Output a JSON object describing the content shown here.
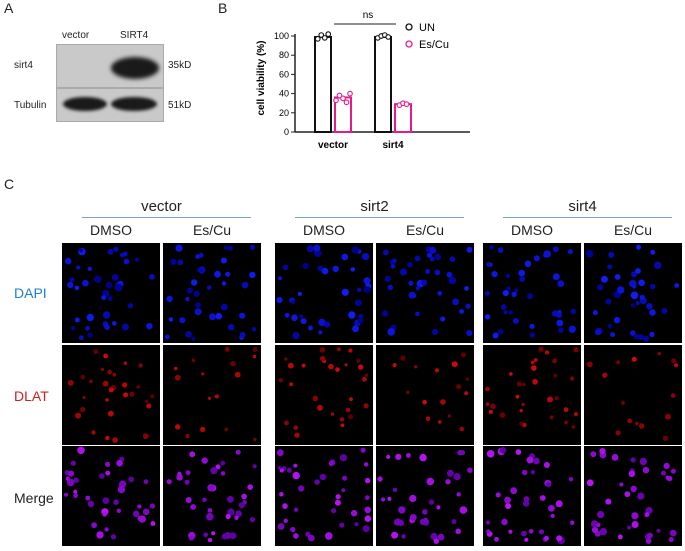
{
  "panels": {
    "a": "A",
    "b": "B",
    "c": "C"
  },
  "western_blot": {
    "lanes": [
      "vector",
      "SIRT4"
    ],
    "rows": [
      {
        "label": "sirt4",
        "size": "35kD"
      },
      {
        "label": "Tubulin",
        "size": "51kD"
      }
    ]
  },
  "chart_data": {
    "type": "bar",
    "categories": [
      "vector",
      "sirt4"
    ],
    "series": [
      {
        "name": "UN",
        "values": [
          99,
          99
        ],
        "color": "#111111"
      },
      {
        "name": "Es/Cu",
        "values": [
          36,
          29
        ],
        "color": "#e8198b"
      }
    ],
    "points": {
      "UN": [
        [
          97,
          101,
          98,
          102
        ],
        [
          98,
          100,
          101,
          99
        ]
      ],
      "Es/Cu": [
        [
          33,
          38,
          35,
          31,
          40
        ],
        [
          28,
          30,
          29
        ]
      ]
    },
    "ylabel": "cell viability (%)",
    "ylim": [
      0,
      100
    ],
    "yticks": [
      "0",
      "20",
      "40",
      "60",
      "80",
      "100"
    ],
    "annotation": "ns",
    "legend_position": "right"
  },
  "microscopy": {
    "groups": [
      "vector",
      "sirt2",
      "sirt4"
    ],
    "conditions": [
      "DMSO",
      "Es/Cu"
    ],
    "rows": [
      {
        "label": "DAPI",
        "color": "#1f7fd0"
      },
      {
        "label": "DLAT",
        "color": "#d02020"
      },
      {
        "label": "Merge",
        "color": "#222222"
      }
    ]
  }
}
